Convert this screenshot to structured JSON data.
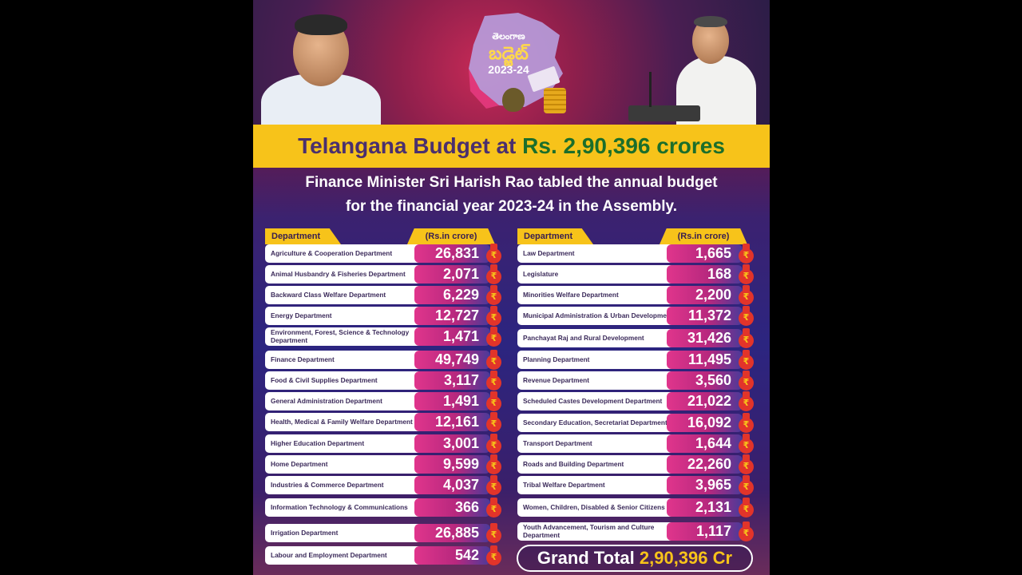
{
  "logo": {
    "state": "తెలంగాణ",
    "word": "బడ్జెట్",
    "year": "2023-24"
  },
  "title": {
    "prefix": "Telangana Budget at",
    "amount": "Rs. 2,90,396 crores"
  },
  "subtitle": {
    "line1": "Finance Minister Sri Harish Rao tabled the annual budget",
    "line2": "for the financial year 2023-24 in the Assembly."
  },
  "headers": {
    "department": "Department",
    "amount": "(Rs.in crore)"
  },
  "rupee_symbol": "₹",
  "left_rows": [
    {
      "label": "Agriculture & Cooperation Department",
      "value": "26,831"
    },
    {
      "label": "Animal Husbandry & Fisheries Department",
      "value": "2,071"
    },
    {
      "label": "Backward Class Welfare Department",
      "value": "6,229"
    },
    {
      "label": "Energy Department",
      "value": "12,727"
    },
    {
      "label": "Environment, Forest, Science & Technology Department",
      "value": "1,471"
    },
    {
      "label": "Finance Department",
      "value": "49,749"
    },
    {
      "label": "Food & Civil Supplies Department",
      "value": "3,117"
    },
    {
      "label": "General Administration Department",
      "value": "1,491"
    },
    {
      "label": "Health, Medical & Family Welfare Department",
      "value": "12,161"
    },
    {
      "label": "Higher Education Department",
      "value": "3,001"
    },
    {
      "label": "Home Department",
      "value": "9,599"
    },
    {
      "label": "Industries & Commerce Department",
      "value": "4,037"
    },
    {
      "label": "Information Technology & Communications",
      "value": "366"
    },
    {
      "label": "Irrigation Department",
      "value": "26,885"
    },
    {
      "label": "Labour and Employment Department",
      "value": "542"
    }
  ],
  "right_rows": [
    {
      "label": "Law Department",
      "value": "1,665"
    },
    {
      "label": "Legislature",
      "value": "168"
    },
    {
      "label": "Minorities Welfare Department",
      "value": "2,200"
    },
    {
      "label": "Municipal Administration & Urban Development",
      "value": "11,372"
    },
    {
      "label": "Panchayat Raj and Rural Development",
      "value": "31,426"
    },
    {
      "label": "Planning Department",
      "value": "11,495"
    },
    {
      "label": "Revenue Department",
      "value": "3,560"
    },
    {
      "label": "Scheduled Castes Development Department",
      "value": "21,022"
    },
    {
      "label": "Secondary Education, Secretariat Department",
      "value": "16,092"
    },
    {
      "label": "Transport Department",
      "value": "1,644"
    },
    {
      "label": "Roads and Building Department",
      "value": "22,260"
    },
    {
      "label": "Tribal Welfare Department",
      "value": "3,965"
    },
    {
      "label": "Women, Children, Disabled & Senior Citizens",
      "value": "2,131"
    },
    {
      "label": "Youth Advancement, Tourism and Culture Department",
      "value": "1,117"
    }
  ],
  "grand_total": {
    "label": "Grand Total",
    "value": "2,90,396 Cr"
  },
  "colors": {
    "accent_yellow": "#f7c31a",
    "title_purple": "#4a2f6e",
    "amount_green": "#1b6e2b",
    "value_pink": "#e0358c"
  },
  "icons": [
    "money-bag-icon",
    "coin-stack-icon",
    "rupee-bag-icon"
  ]
}
